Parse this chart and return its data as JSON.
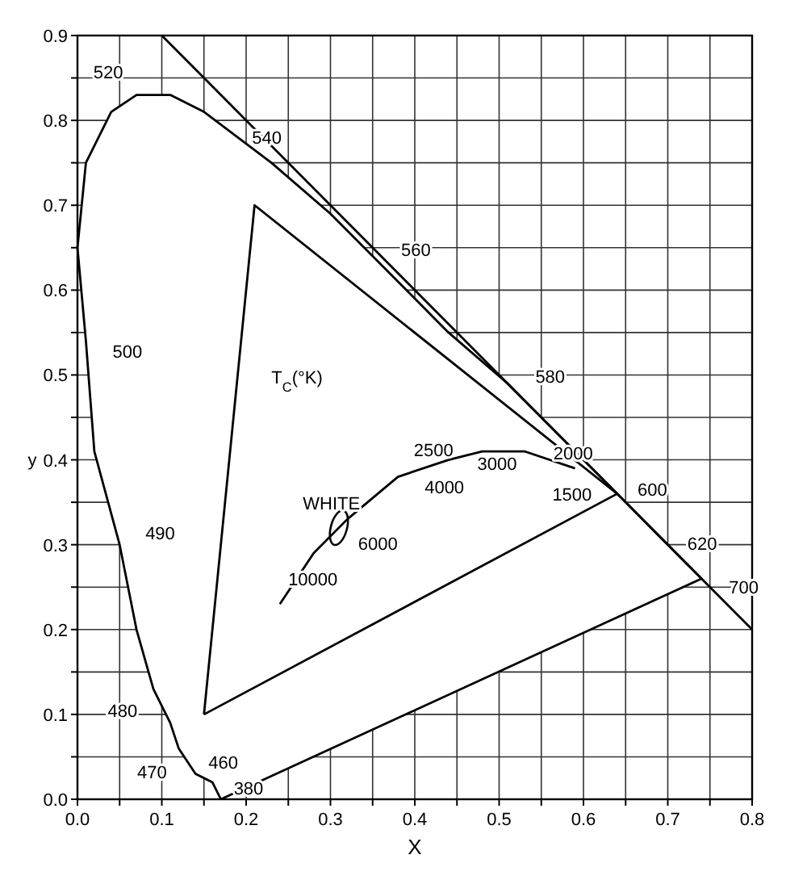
{
  "chart_data": {
    "type": "line",
    "xlabel": "X",
    "ylabel": "y",
    "xlim": [
      0,
      0.8
    ],
    "ylim": [
      0,
      0.9
    ],
    "xticks": [
      {
        "value": 0,
        "label": "0.0"
      },
      {
        "value": 0.05,
        "label": null
      },
      0.1,
      {
        "value": 0.15,
        "label": null
      },
      0.2,
      {
        "value": 0.25,
        "label": null
      },
      0.3,
      {
        "value": 0.35,
        "label": null
      },
      0.4,
      {
        "value": 0.45,
        "label": null
      },
      0.5,
      {
        "value": 0.55,
        "label": null
      },
      0.6,
      {
        "value": 0.65,
        "label": null
      },
      0.7,
      {
        "value": 0.75,
        "label": null
      },
      0.8
    ],
    "yticks": [
      {
        "value": 0,
        "label": "0.0"
      },
      {
        "value": 0.05,
        "label": null
      },
      0.1,
      {
        "value": 0.15,
        "label": null
      },
      0.2,
      {
        "value": 0.25,
        "label": null
      },
      0.3,
      {
        "value": 0.35,
        "label": null
      },
      0.4,
      {
        "value": 0.45,
        "label": null
      },
      0.5,
      {
        "value": 0.55,
        "label": null
      },
      0.6,
      {
        "value": 0.65,
        "label": null
      },
      0.7,
      {
        "value": 0.75,
        "label": null
      },
      0.8,
      {
        "value": 0.85,
        "label": null
      },
      0.9
    ],
    "grid": true,
    "marker": "none",
    "line_style": "solid",
    "series": [
      {
        "color": "#000000",
        "x": [
          0.17,
          0.16,
          0.14,
          0.12,
          0.11,
          0.09,
          0.07,
          0.05,
          0.02,
          0.01,
          0.0,
          0.01,
          0.04,
          0.07,
          0.11,
          0.15,
          0.23,
          0.3,
          0.37,
          0.44,
          0.51,
          0.58,
          0.63,
          0.67,
          0.69,
          0.72,
          0.73,
          0.74
        ],
        "values": [
          0.0,
          0.02,
          0.03,
          0.06,
          0.09,
          0.13,
          0.2,
          0.3,
          0.41,
          0.54,
          0.65,
          0.75,
          0.81,
          0.83,
          0.83,
          0.81,
          0.75,
          0.69,
          0.62,
          0.55,
          0.49,
          0.42,
          0.37,
          0.33,
          0.31,
          0.28,
          0.27,
          0.26
        ]
      },
      {
        "color": "#000000",
        "x": [
          0.17,
          0.74
        ],
        "values": [
          0.0,
          0.26
        ]
      },
      {
        "color": "#000000",
        "x": [
          0.1,
          0.8
        ],
        "values": [
          0.9,
          0.2
        ]
      },
      {
        "color": "#000000",
        "x": [
          0.24,
          0.28,
          0.32,
          0.38,
          0.44,
          0.48,
          0.53,
          0.59
        ],
        "values": [
          0.23,
          0.29,
          0.33,
          0.38,
          0.4,
          0.41,
          0.41,
          0.39
        ]
      },
      {
        "color": "#000000",
        "x": [
          0.15,
          0.21,
          0.64
        ],
        "values": [
          0.1,
          0.7,
          0.36
        ]
      },
      {
        "color": "#000000",
        "x": [
          0.15,
          0.64
        ],
        "values": [
          0.1,
          0.36
        ]
      }
    ],
    "annotations": [
      {
        "text": "380",
        "x": 0.17,
        "y": 0.0
      },
      {
        "text": "460",
        "x": 0.14,
        "y": 0.03
      },
      {
        "text": "470",
        "x": 0.12,
        "y": 0.06
      },
      {
        "text": "480",
        "x": 0.09,
        "y": 0.13
      },
      {
        "text": "490",
        "x": 0.05,
        "y": 0.3
      },
      {
        "text": "500",
        "x": 0.01,
        "y": 0.54
      },
      {
        "text": "520",
        "x": 0.07,
        "y": 0.83
      },
      {
        "text": "540",
        "x": 0.23,
        "y": 0.75
      },
      {
        "text": "560",
        "x": 0.37,
        "y": 0.62
      },
      {
        "text": "580",
        "x": 0.51,
        "y": 0.49
      },
      {
        "text": "600",
        "x": 0.63,
        "y": 0.37
      },
      {
        "text": "620",
        "x": 0.69,
        "y": 0.31
      },
      {
        "text": "700",
        "x": 0.74,
        "y": 0.26
      },
      {
        "text": "10000",
        "x": 0.28,
        "y": 0.29
      },
      {
        "text": "6000",
        "x": 0.32,
        "y": 0.33
      },
      {
        "text": "4000",
        "x": 0.38,
        "y": 0.38
      },
      {
        "text": "3000",
        "x": 0.44,
        "y": 0.4
      },
      {
        "text": "2500",
        "x": 0.48,
        "y": 0.41
      },
      {
        "text": "2000",
        "x": 0.53,
        "y": 0.41
      },
      {
        "text": "1500",
        "x": 0.59,
        "y": 0.39
      },
      {
        "text": "WHITE",
        "x": 0.31,
        "y": 0.32
      },
      "T$_{C}$(°K)"
    ]
  }
}
